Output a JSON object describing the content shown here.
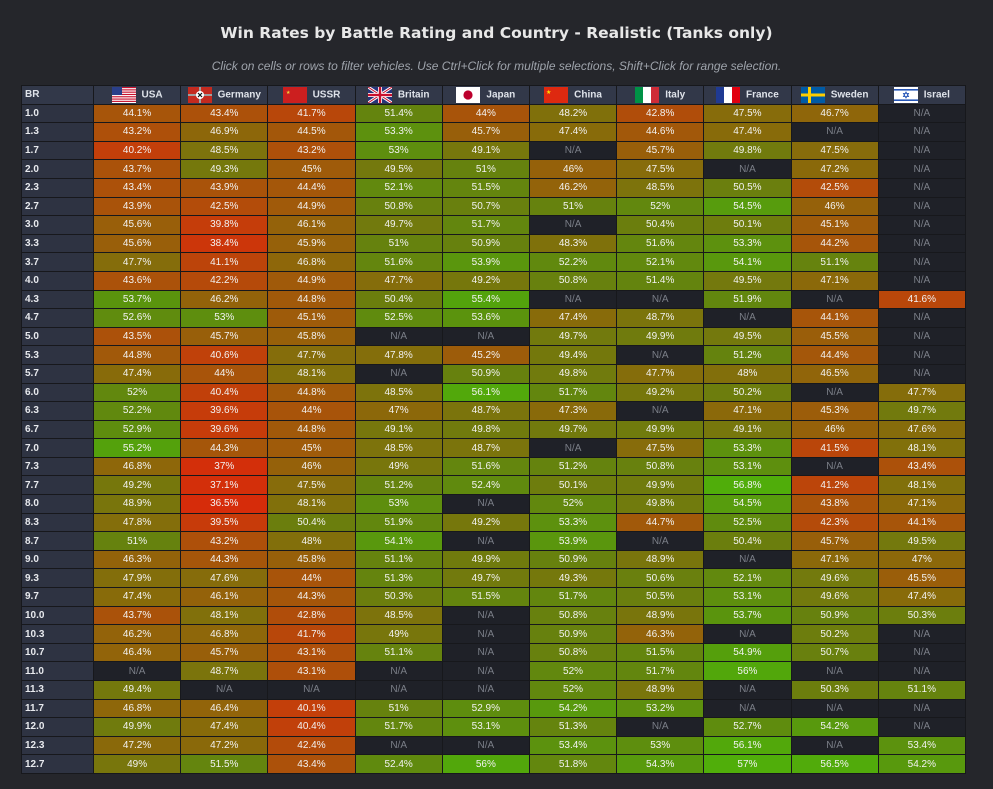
{
  "title": "Win Rates by Battle Rating and Country - Realistic (Tanks only)",
  "subtitle": "Click on cells or rows to filter vehicles. Use Ctrl+Click for multiple selections, Shift+Click for range selection.",
  "chart_data": {
    "type": "heatmap",
    "row_header": "BR",
    "columns": [
      {
        "name": "USA",
        "flag": "usa-flag-icon"
      },
      {
        "name": "Germany",
        "flag": "germany-flag-icon"
      },
      {
        "name": "USSR",
        "flag": "ussr-flag-icon"
      },
      {
        "name": "Britain",
        "flag": "britain-flag-icon"
      },
      {
        "name": "Japan",
        "flag": "japan-flag-icon"
      },
      {
        "name": "China",
        "flag": "china-flag-icon"
      },
      {
        "name": "Italy",
        "flag": "italy-flag-icon"
      },
      {
        "name": "France",
        "flag": "france-flag-icon"
      },
      {
        "name": "Sweden",
        "flag": "sweden-flag-icon"
      },
      {
        "name": "Israel",
        "flag": "israel-flag-icon"
      }
    ],
    "rows": [
      {
        "br": "1.0",
        "values": [
          "44.1%",
          "43.4%",
          "41.7%",
          "51.4%",
          "44%",
          "48.2%",
          "42.8%",
          "47.5%",
          "46.7%",
          "N/A"
        ]
      },
      {
        "br": "1.3",
        "values": [
          "43.2%",
          "46.9%",
          "44.5%",
          "53.3%",
          "45.7%",
          "47.4%",
          "44.6%",
          "47.4%",
          "N/A",
          "N/A"
        ]
      },
      {
        "br": "1.7",
        "values": [
          "40.2%",
          "48.5%",
          "43.2%",
          "53%",
          "49.1%",
          "N/A",
          "45.7%",
          "49.8%",
          "47.5%",
          "N/A"
        ]
      },
      {
        "br": "2.0",
        "values": [
          "43.7%",
          "49.3%",
          "45%",
          "49.5%",
          "51%",
          "46%",
          "47.5%",
          "N/A",
          "47.2%",
          "N/A"
        ]
      },
      {
        "br": "2.3",
        "values": [
          "43.4%",
          "43.9%",
          "44.4%",
          "52.1%",
          "51.5%",
          "46.2%",
          "48.5%",
          "50.5%",
          "42.5%",
          "N/A"
        ]
      },
      {
        "br": "2.7",
        "values": [
          "43.9%",
          "42.5%",
          "44.9%",
          "50.8%",
          "50.7%",
          "51%",
          "52%",
          "54.5%",
          "46%",
          "N/A"
        ]
      },
      {
        "br": "3.0",
        "values": [
          "45.6%",
          "39.8%",
          "46.1%",
          "49.7%",
          "51.7%",
          "N/A",
          "50.4%",
          "50.1%",
          "45.1%",
          "N/A"
        ]
      },
      {
        "br": "3.3",
        "values": [
          "45.6%",
          "38.4%",
          "45.9%",
          "51%",
          "50.9%",
          "48.3%",
          "51.6%",
          "53.3%",
          "44.2%",
          "N/A"
        ]
      },
      {
        "br": "3.7",
        "values": [
          "47.7%",
          "41.1%",
          "46.8%",
          "51.6%",
          "53.9%",
          "52.2%",
          "52.1%",
          "54.1%",
          "51.1%",
          "N/A"
        ]
      },
      {
        "br": "4.0",
        "values": [
          "43.6%",
          "42.2%",
          "44.9%",
          "47.7%",
          "49.2%",
          "50.8%",
          "51.4%",
          "49.5%",
          "47.1%",
          "N/A"
        ]
      },
      {
        "br": "4.3",
        "values": [
          "53.7%",
          "46.2%",
          "44.8%",
          "50.4%",
          "55.4%",
          "N/A",
          "N/A",
          "51.9%",
          "N/A",
          "41.6%"
        ]
      },
      {
        "br": "4.7",
        "values": [
          "52.6%",
          "53%",
          "45.1%",
          "52.5%",
          "53.6%",
          "47.4%",
          "48.7%",
          "N/A",
          "44.1%",
          "N/A"
        ]
      },
      {
        "br": "5.0",
        "values": [
          "43.5%",
          "45.7%",
          "45.8%",
          "N/A",
          "N/A",
          "49.7%",
          "49.9%",
          "49.5%",
          "45.5%",
          "N/A"
        ]
      },
      {
        "br": "5.3",
        "values": [
          "44.8%",
          "40.6%",
          "47.7%",
          "47.8%",
          "45.2%",
          "49.4%",
          "N/A",
          "51.2%",
          "44.4%",
          "N/A"
        ]
      },
      {
        "br": "5.7",
        "values": [
          "47.4%",
          "44%",
          "48.1%",
          "N/A",
          "50.9%",
          "49.8%",
          "47.7%",
          "48%",
          "46.5%",
          "N/A"
        ]
      },
      {
        "br": "6.0",
        "values": [
          "52%",
          "40.4%",
          "44.8%",
          "48.5%",
          "56.1%",
          "51.7%",
          "49.2%",
          "50.2%",
          "N/A",
          "47.7%"
        ]
      },
      {
        "br": "6.3",
        "values": [
          "52.2%",
          "39.6%",
          "44%",
          "47%",
          "48.7%",
          "47.3%",
          "N/A",
          "47.1%",
          "45.3%",
          "49.7%"
        ]
      },
      {
        "br": "6.7",
        "values": [
          "52.9%",
          "39.6%",
          "44.8%",
          "49.1%",
          "49.8%",
          "49.7%",
          "49.9%",
          "49.1%",
          "46%",
          "47.6%"
        ]
      },
      {
        "br": "7.0",
        "values": [
          "55.2%",
          "44.3%",
          "45%",
          "48.5%",
          "48.7%",
          "N/A",
          "47.5%",
          "53.3%",
          "41.5%",
          "48.1%"
        ]
      },
      {
        "br": "7.3",
        "values": [
          "46.8%",
          "37%",
          "46%",
          "49%",
          "51.6%",
          "51.2%",
          "50.8%",
          "53.1%",
          "N/A",
          "43.4%"
        ]
      },
      {
        "br": "7.7",
        "values": [
          "49.2%",
          "37.1%",
          "47.5%",
          "51.2%",
          "52.4%",
          "50.1%",
          "49.9%",
          "56.8%",
          "41.2%",
          "48.1%"
        ]
      },
      {
        "br": "8.0",
        "values": [
          "48.9%",
          "36.5%",
          "48.1%",
          "53%",
          "N/A",
          "52%",
          "49.8%",
          "54.5%",
          "43.8%",
          "47.1%"
        ]
      },
      {
        "br": "8.3",
        "values": [
          "47.8%",
          "39.5%",
          "50.4%",
          "51.9%",
          "49.2%",
          "53.3%",
          "44.7%",
          "52.5%",
          "42.3%",
          "44.1%"
        ]
      },
      {
        "br": "8.7",
        "values": [
          "51%",
          "43.2%",
          "48%",
          "54.1%",
          "N/A",
          "53.9%",
          "N/A",
          "50.4%",
          "45.7%",
          "49.5%"
        ]
      },
      {
        "br": "9.0",
        "values": [
          "46.3%",
          "44.3%",
          "45.8%",
          "51.1%",
          "49.9%",
          "50.9%",
          "48.9%",
          "N/A",
          "47.1%",
          "47%"
        ]
      },
      {
        "br": "9.3",
        "values": [
          "47.9%",
          "47.6%",
          "44%",
          "51.3%",
          "49.7%",
          "49.3%",
          "50.6%",
          "52.1%",
          "49.6%",
          "45.5%"
        ]
      },
      {
        "br": "9.7",
        "values": [
          "47.4%",
          "46.1%",
          "44.3%",
          "50.3%",
          "51.5%",
          "51.7%",
          "50.5%",
          "53.1%",
          "49.6%",
          "47.4%"
        ]
      },
      {
        "br": "10.0",
        "values": [
          "43.7%",
          "48.1%",
          "42.8%",
          "48.5%",
          "N/A",
          "50.8%",
          "48.9%",
          "53.7%",
          "50.9%",
          "50.3%"
        ]
      },
      {
        "br": "10.3",
        "values": [
          "46.2%",
          "46.8%",
          "41.7%",
          "49%",
          "N/A",
          "50.9%",
          "46.3%",
          "N/A",
          "50.2%",
          "N/A"
        ]
      },
      {
        "br": "10.7",
        "values": [
          "46.4%",
          "45.7%",
          "43.1%",
          "51.1%",
          "N/A",
          "50.8%",
          "51.5%",
          "54.9%",
          "50.7%",
          "N/A"
        ]
      },
      {
        "br": "11.0",
        "values": [
          "N/A",
          "48.7%",
          "43.1%",
          "N/A",
          "N/A",
          "52%",
          "51.7%",
          "56%",
          "N/A",
          "N/A"
        ]
      },
      {
        "br": "11.3",
        "values": [
          "49.4%",
          "N/A",
          "N/A",
          "N/A",
          "N/A",
          "52%",
          "48.9%",
          "N/A",
          "50.3%",
          "51.1%"
        ]
      },
      {
        "br": "11.7",
        "values": [
          "46.8%",
          "46.4%",
          "40.1%",
          "51%",
          "52.9%",
          "54.2%",
          "53.2%",
          "N/A",
          "N/A",
          "N/A"
        ]
      },
      {
        "br": "12.0",
        "values": [
          "49.9%",
          "47.4%",
          "40.4%",
          "51.7%",
          "53.1%",
          "51.3%",
          "N/A",
          "52.7%",
          "54.2%",
          "N/A"
        ]
      },
      {
        "br": "12.3",
        "values": [
          "47.2%",
          "47.2%",
          "42.4%",
          "N/A",
          "N/A",
          "53.4%",
          "53%",
          "56.1%",
          "N/A",
          "53.4%"
        ]
      },
      {
        "br": "12.7",
        "values": [
          "49%",
          "51.5%",
          "43.4%",
          "52.4%",
          "56%",
          "51.8%",
          "54.3%",
          "57%",
          "56.5%",
          "54.2%"
        ]
      }
    ]
  }
}
